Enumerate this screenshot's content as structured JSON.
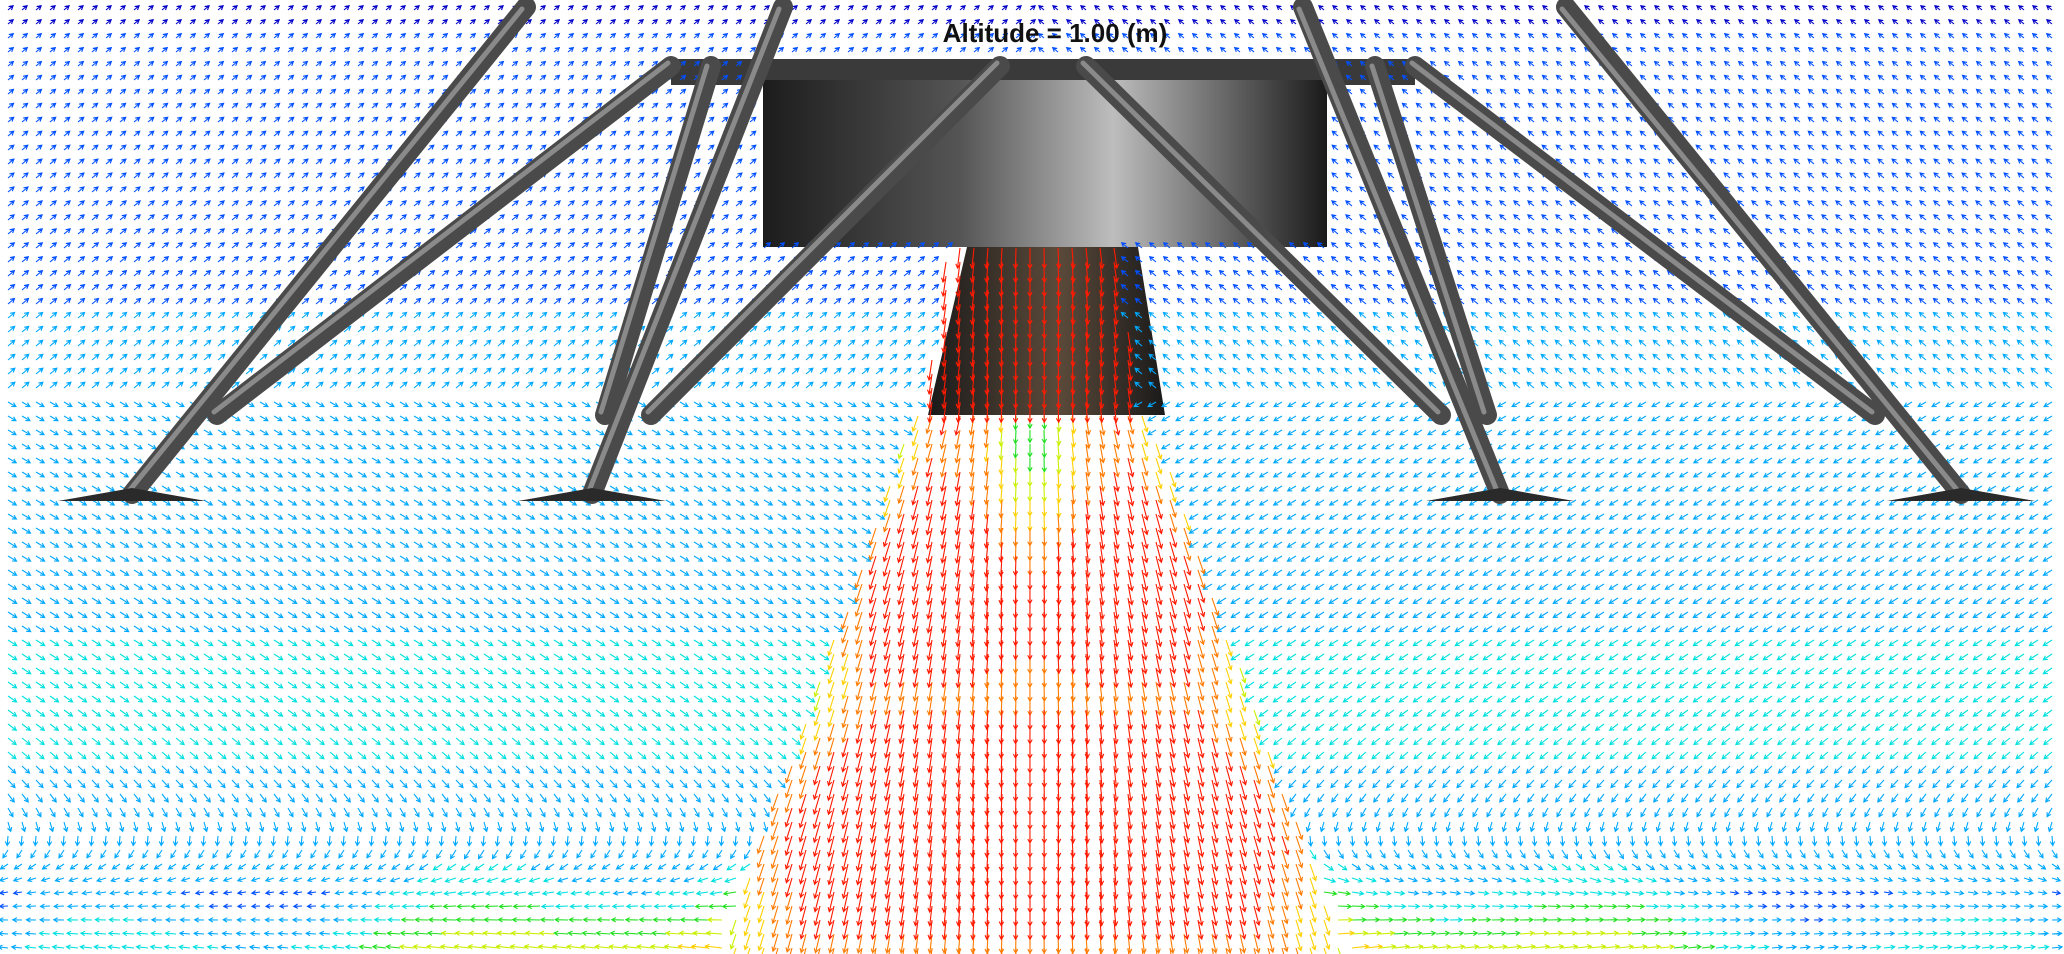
{
  "title": "Altitude = 1.00 (m)"
}
